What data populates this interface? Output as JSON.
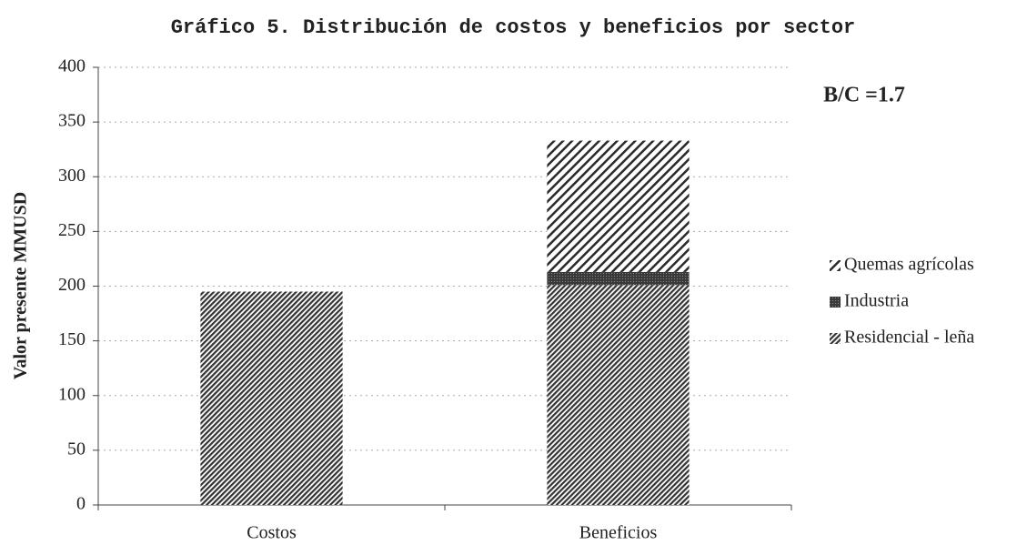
{
  "chart_data": {
    "type": "stacked_bar",
    "title": "Gráfico 5. Distribución de costos y beneficios por sector",
    "y_label": "Valor presente MMUSD",
    "annotation": "B/C =1.7",
    "categories": [
      "Costos",
      "Beneficios"
    ],
    "series": [
      {
        "name": "Residencial - leña",
        "color": "#333333",
        "values": [
          195,
          201
        ]
      },
      {
        "name": "Industria",
        "color": "#3a3a3a",
        "values": [
          0,
          12
        ]
      },
      {
        "name": "Quemas agrícolas",
        "color": "#2a2a2a",
        "values": [
          0,
          120
        ]
      }
    ],
    "ylim": [
      0,
      400
    ],
    "yticks": [
      0,
      50,
      100,
      150,
      200,
      250,
      300,
      350,
      400
    ],
    "grid": true,
    "legend": "right"
  }
}
